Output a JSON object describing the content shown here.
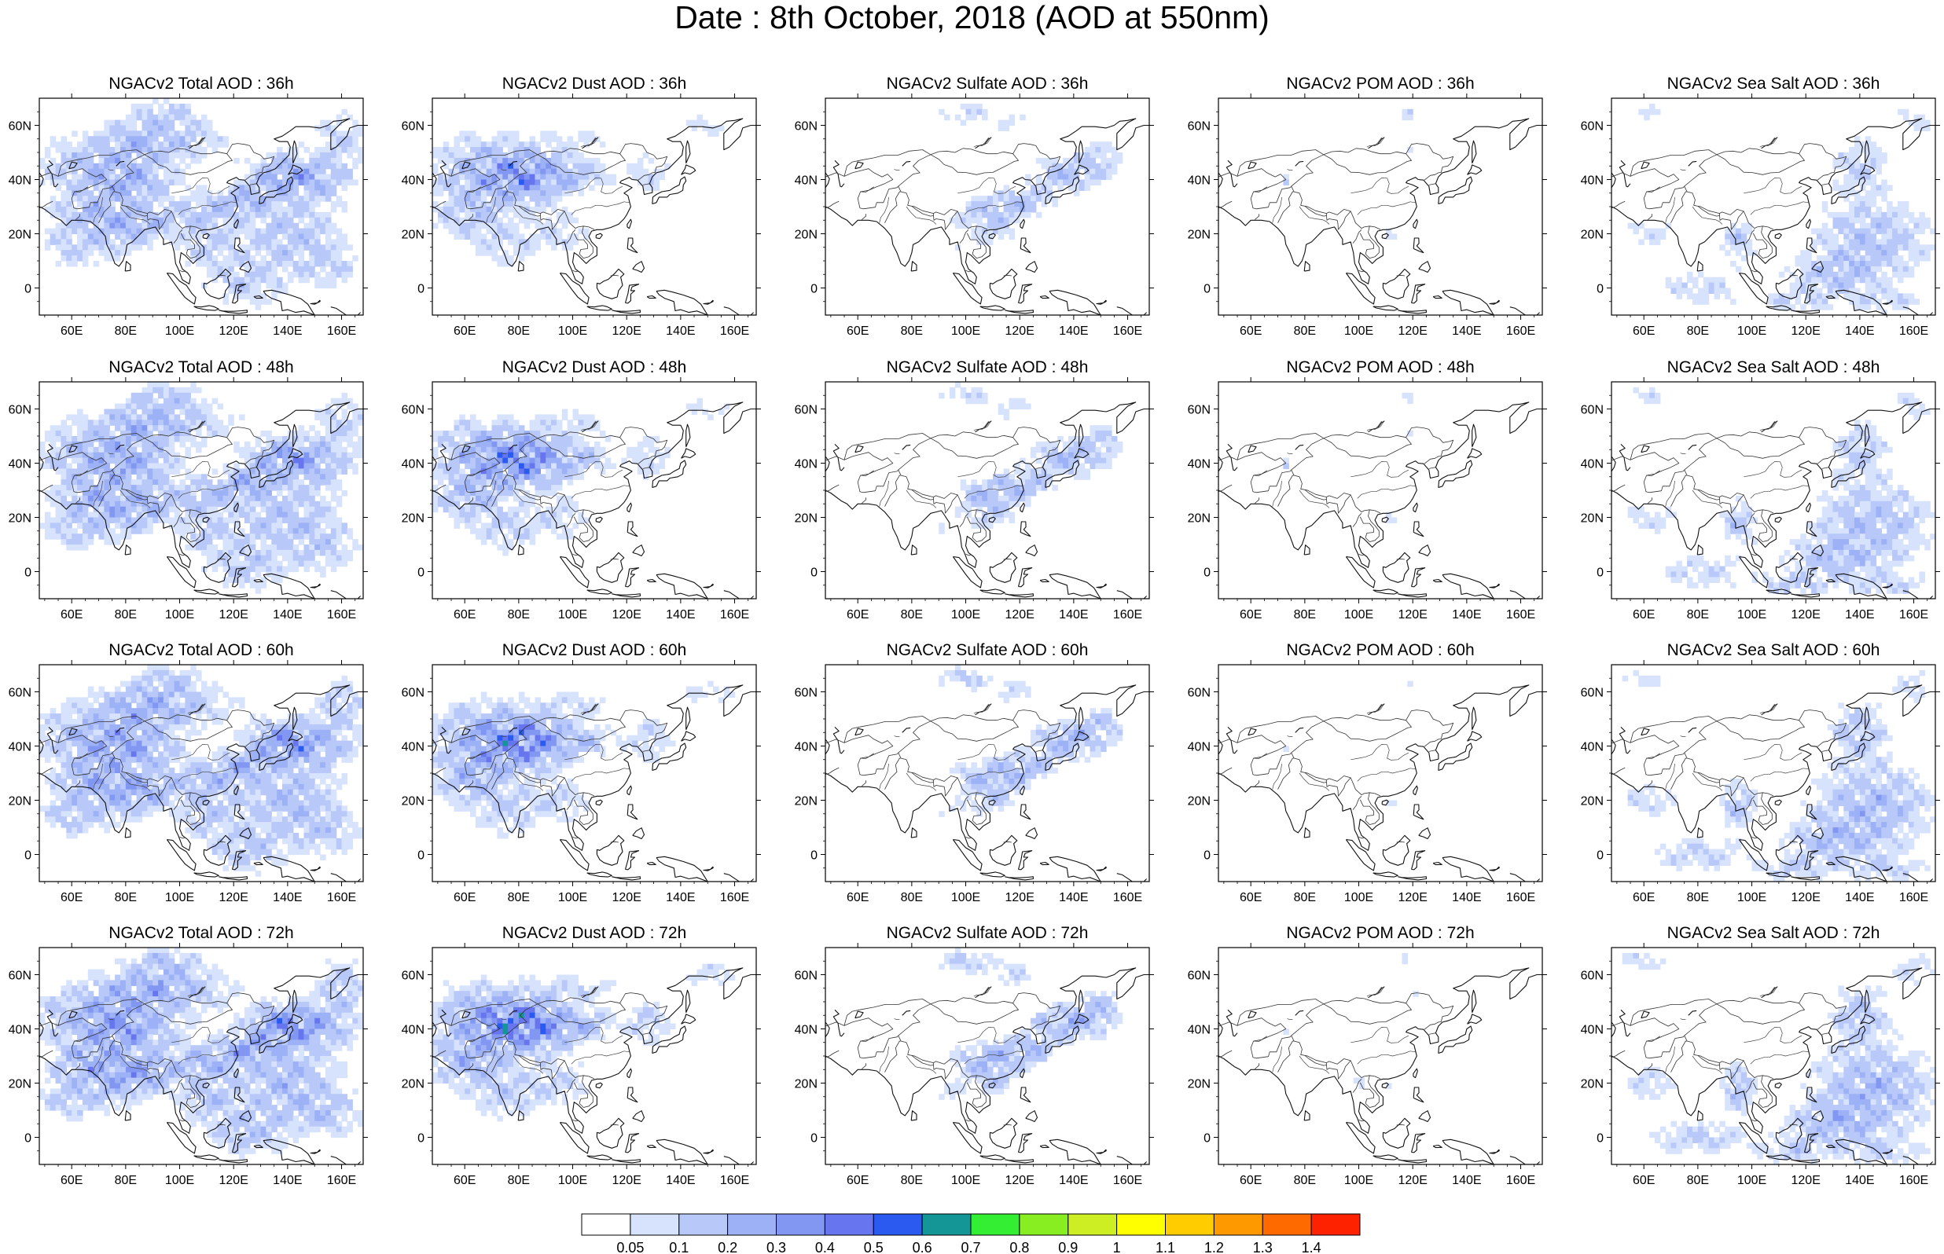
{
  "title": "Date : 8th October, 2018 (AOD at 550nm)",
  "panels": [
    [
      {
        "title": "NGACv2 Total AOD : 36h",
        "species": "total",
        "hour": 36
      },
      {
        "title": "NGACv2 Dust AOD : 36h",
        "species": "dust",
        "hour": 36
      },
      {
        "title": "NGACv2 Sulfate AOD : 36h",
        "species": "sulfate",
        "hour": 36
      },
      {
        "title": "NGACv2 POM AOD : 36h",
        "species": "pom",
        "hour": 36
      },
      {
        "title": "NGACv2 Sea Salt AOD : 36h",
        "species": "seasalt",
        "hour": 36
      }
    ],
    [
      {
        "title": "NGACv2 Total AOD : 48h",
        "species": "total",
        "hour": 48
      },
      {
        "title": "NGACv2 Dust AOD : 48h",
        "species": "dust",
        "hour": 48
      },
      {
        "title": "NGACv2 Sulfate AOD : 48h",
        "species": "sulfate",
        "hour": 48
      },
      {
        "title": "NGACv2 POM AOD : 48h",
        "species": "pom",
        "hour": 48
      },
      {
        "title": "NGACv2 Sea Salt AOD : 48h",
        "species": "seasalt",
        "hour": 48
      }
    ],
    [
      {
        "title": "NGACv2 Total AOD : 60h",
        "species": "total",
        "hour": 60
      },
      {
        "title": "NGACv2 Dust AOD : 60h",
        "species": "dust",
        "hour": 60
      },
      {
        "title": "NGACv2 Sulfate AOD : 60h",
        "species": "sulfate",
        "hour": 60
      },
      {
        "title": "NGACv2 POM AOD : 60h",
        "species": "pom",
        "hour": 60
      },
      {
        "title": "NGACv2 Sea Salt AOD : 60h",
        "species": "seasalt",
        "hour": 60
      }
    ],
    [
      {
        "title": "NGACv2 Total AOD : 72h",
        "species": "total",
        "hour": 72
      },
      {
        "title": "NGACv2 Dust AOD : 72h",
        "species": "dust",
        "hour": 72
      },
      {
        "title": "NGACv2 Sulfate AOD : 72h",
        "species": "sulfate",
        "hour": 72
      },
      {
        "title": "NGACv2 POM AOD : 72h",
        "species": "pom",
        "hour": 72
      },
      {
        "title": "NGACv2 Sea Salt  AOD : 72h",
        "species": "seasalt",
        "hour": 72
      }
    ]
  ],
  "axes": {
    "lon_ticks": [
      "60E",
      "80E",
      "100E",
      "120E",
      "140E",
      "160E"
    ],
    "lon_values": [
      60,
      80,
      100,
      120,
      140,
      160
    ],
    "lat_ticks": [
      "60N",
      "40N",
      "20N",
      "0"
    ],
    "lat_values": [
      60,
      40,
      20,
      0
    ],
    "lon_range": [
      48,
      168
    ],
    "lat_range": [
      -10,
      70
    ]
  },
  "colorbar": {
    "labels": [
      "0.05",
      "0.1",
      "0.2",
      "0.3",
      "0.4",
      "0.5",
      "0.6",
      "0.7",
      "0.8",
      "0.9",
      "1",
      "1.1",
      "1.2",
      "1.3",
      "1.4"
    ],
    "colors": [
      "#ffffff",
      "#d7e2fc",
      "#b8c8f9",
      "#9db2f6",
      "#8297f2",
      "#6775ee",
      "#2a5aef",
      "#159696",
      "#33ee33",
      "#88ee22",
      "#ccee22",
      "#ffff00",
      "#ffcc00",
      "#ff9900",
      "#ff6a00",
      "#ff2200"
    ]
  }
}
